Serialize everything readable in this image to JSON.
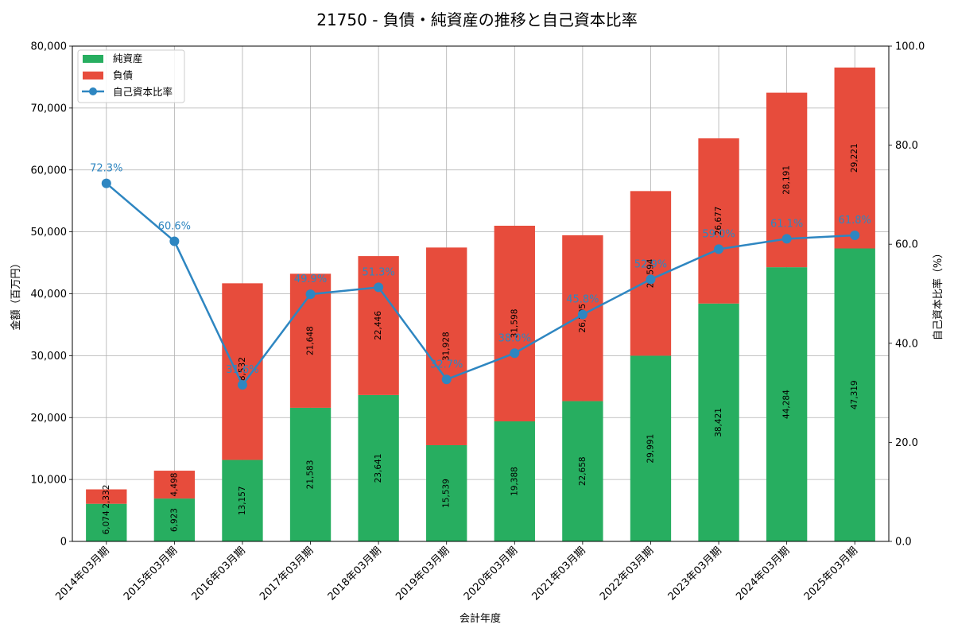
{
  "chart_data": {
    "type": "bar",
    "stacked": true,
    "title": "21750 - 負債・純資産の推移と自己資本比率",
    "xlabel": "会計年度",
    "ylabel": "金額（百万円）",
    "y2label": "自己資本比率（%）",
    "ylim": [
      0,
      80000
    ],
    "y2lim": [
      0,
      100
    ],
    "yticks": [
      "0",
      "10,000",
      "20,000",
      "30,000",
      "40,000",
      "50,000",
      "60,000",
      "70,000",
      "80,000"
    ],
    "y2ticks": [
      "0.0",
      "20.0",
      "40.0",
      "60.0",
      "80.0",
      "100.0"
    ],
    "grid": true,
    "legend_position": "top-left",
    "categories": [
      "2014年03月期",
      "2015年03月期",
      "2016年03月期",
      "2017年03月期",
      "2018年03月期",
      "2019年03月期",
      "2020年03月期",
      "2021年03月期",
      "2022年03月期",
      "2023年03月期",
      "2024年03月期",
      "2025年03月期"
    ],
    "series": [
      {
        "name": "純資産",
        "color": "#27ae60",
        "values": [
          6074,
          6923,
          13157,
          21583,
          23641,
          15539,
          19388,
          22658,
          29991,
          38421,
          44284,
          47319
        ],
        "labels": [
          "6,074",
          "6,923",
          "13,157",
          "21,583",
          "23,641",
          "15,539",
          "19,388",
          "22,658",
          "29,991",
          "38,421",
          "44,284",
          "47,319"
        ]
      },
      {
        "name": "負債",
        "color": "#e74c3c",
        "values": [
          2332,
          4498,
          28532,
          21648,
          22446,
          31928,
          31598,
          26795,
          26594,
          26677,
          28191,
          29221
        ],
        "labels": [
          "2,332",
          "4,498",
          "28,532",
          "21,648",
          "22,446",
          "31,928",
          "31,598",
          "26,795",
          "26,594",
          "26,677",
          "28,191",
          "29,221"
        ]
      },
      {
        "name": "自己資本比率",
        "color": "#2e86c1",
        "type": "line",
        "axis": "right",
        "values": [
          72.3,
          60.6,
          31.6,
          49.9,
          51.3,
          32.7,
          38.0,
          45.8,
          52.9,
          59.0,
          61.1,
          61.8
        ],
        "labels": [
          "72.3%",
          "60.6%",
          "31.6%",
          "49.9%",
          "51.3%",
          "32.7%",
          "38.0%",
          "45.8%",
          "52.9%",
          "59.0%",
          "61.1%",
          "61.8%"
        ]
      }
    ]
  }
}
